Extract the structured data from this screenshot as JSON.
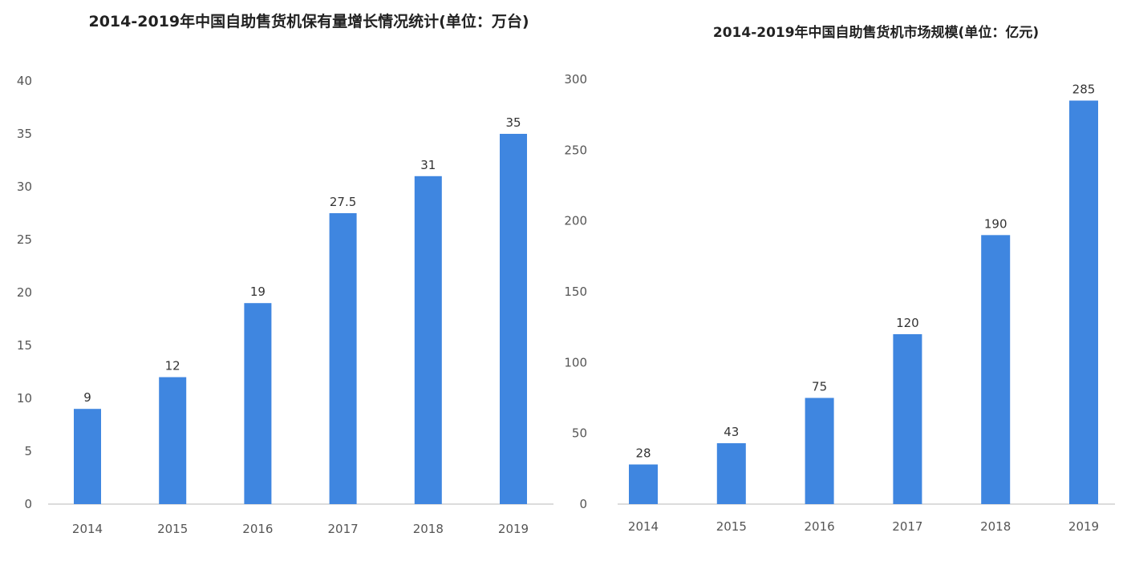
{
  "chart_data": [
    {
      "type": "bar",
      "title": "2014-2019年中国自助售货机保有量增长情况统计(单位：万台)",
      "categories": [
        "2014",
        "2015",
        "2016",
        "2017",
        "2018",
        "2019"
      ],
      "values": [
        9,
        12,
        19,
        27.5,
        31,
        35
      ],
      "value_labels": [
        "9",
        "12",
        "19",
        "27.5",
        "31",
        "35"
      ],
      "ylim": [
        0,
        40
      ],
      "yticks": [
        "0",
        "5",
        "10",
        "15",
        "20",
        "25",
        "30",
        "35",
        "40"
      ],
      "grid": false,
      "color": "#3f86e0"
    },
    {
      "type": "bar",
      "title": "2014-2019年中国自助售货机市场规模(单位：亿元)",
      "categories": [
        "2014",
        "2015",
        "2016",
        "2017",
        "2018",
        "2019"
      ],
      "values": [
        28,
        43,
        75,
        120,
        190,
        285
      ],
      "value_labels": [
        "28",
        "43",
        "75",
        "120",
        "190",
        "285"
      ],
      "ylim": [
        0,
        300
      ],
      "yticks": [
        "0",
        "50",
        "100",
        "150",
        "200",
        "250",
        "300"
      ],
      "grid": false,
      "color": "#3f86e0"
    }
  ]
}
